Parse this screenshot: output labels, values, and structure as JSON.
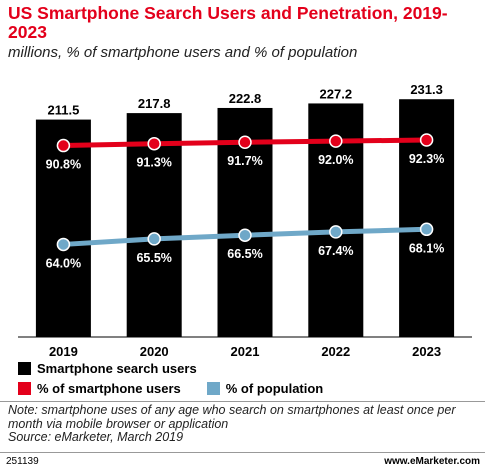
{
  "title": "US Smartphone Search Users and Penetration, 2019-2023",
  "subtitle": "millions, % of smartphone users and % of population",
  "colors": {
    "title": "#e3001b",
    "bars": "#000000",
    "smartphone_line": "#e3001b",
    "population_line": "#6fa8c8"
  },
  "chart_data": {
    "type": "bar",
    "categories": [
      "2019",
      "2020",
      "2021",
      "2022",
      "2023"
    ],
    "series": [
      {
        "name": "Smartphone search users",
        "type": "bar",
        "values": [
          211.5,
          217.8,
          222.8,
          227.2,
          231.3
        ],
        "labels": [
          "211.5",
          "217.8",
          "222.8",
          "227.2",
          "231.3"
        ]
      },
      {
        "name": "% of smartphone users",
        "type": "line",
        "values": [
          90.8,
          91.3,
          91.7,
          92.0,
          92.3
        ],
        "labels": [
          "90.8%",
          "91.3%",
          "91.7%",
          "92.0%",
          "92.3%"
        ]
      },
      {
        "name": "% of population",
        "type": "line",
        "values": [
          64.0,
          65.5,
          66.5,
          67.4,
          68.1
        ],
        "labels": [
          "64.0%",
          "65.5%",
          "66.5%",
          "67.4%",
          "68.1%"
        ]
      }
    ],
    "legend_position": "bottom",
    "grid": false
  },
  "legend": {
    "bars": "Smartphone search users",
    "smartphone": "% of smartphone users",
    "population": "% of population"
  },
  "note": "Note: smartphone uses of any age who search on smartphones at least once per month via mobile browser or application",
  "source": "Source: eMarketer, March 2019",
  "footer": {
    "id": "251139",
    "site": "www.eMarketer.com"
  }
}
